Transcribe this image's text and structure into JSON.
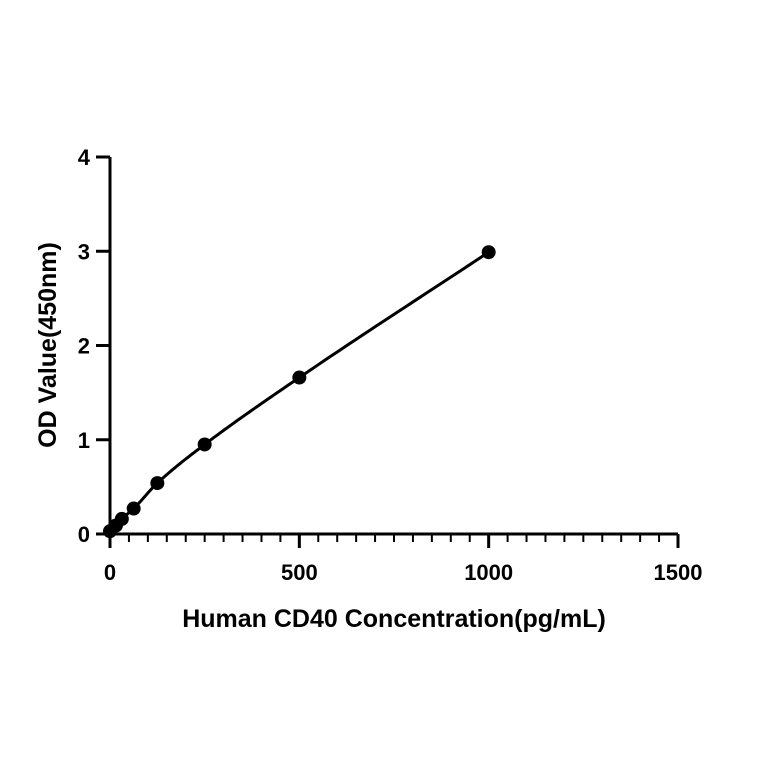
{
  "chart_data": {
    "type": "scatter",
    "title": "",
    "xlabel": "Human CD40 Concentration(pg/mL)",
    "ylabel": "OD Value(450nm)",
    "xlim": [
      0,
      1500
    ],
    "ylim": [
      0,
      4
    ],
    "x_ticks": [
      0,
      500,
      1000,
      1500
    ],
    "y_ticks": [
      0,
      1,
      2,
      3,
      4
    ],
    "x_minor_step": 50,
    "grid": false,
    "legend": "none",
    "series": [
      {
        "x": [
          0,
          15.6,
          31.25,
          62.5,
          125,
          250,
          500,
          1000
        ],
        "values": [
          0.03,
          0.09,
          0.16,
          0.27,
          0.54,
          0.95,
          1.66,
          2.99
        ],
        "fit_curve": true
      }
    ],
    "colors": {
      "marker": "#000000",
      "line": "#000000"
    }
  }
}
